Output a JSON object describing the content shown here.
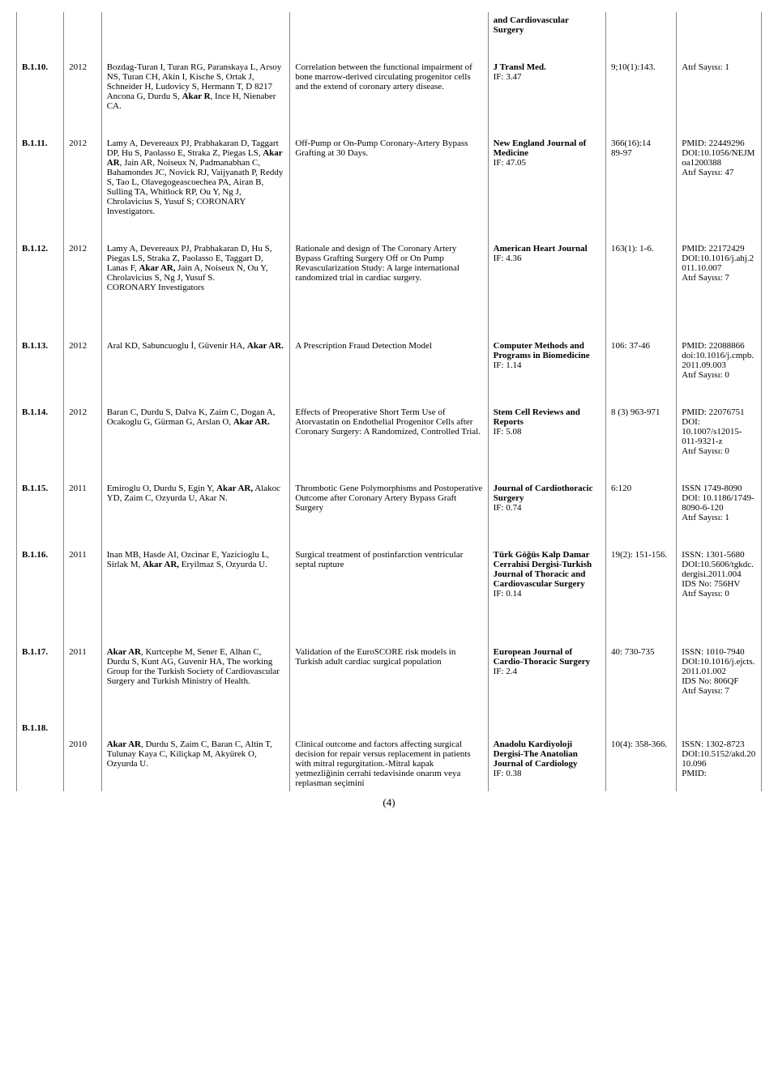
{
  "header_cell": "and Cardiovascular Surgery",
  "rows": [
    {
      "id": "B.1.10.",
      "year": "2012",
      "authors": "Bozdag-Turan I, Turan RG, Paranskaya L, Arsoy NS, Turan CH, Akin I, Kische S, Ortak J, Schneider H, Ludovicy S, Hermann T, D 8217 Ancona G, Durdu S, <b>Akar R</b>, Ince H, Nienaber CA.",
      "title": "Correlation between the functional impairment of bone marrow-derived circulating progenitor cells and the extend of coronary artery disease.",
      "journal": "<b>J Transl Med.</b><br>IF: 3.47",
      "vol": "9;10(1):143.",
      "ids": "Atıf Sayısı: 1"
    },
    {
      "id": "B.1.11.",
      "year": "2012",
      "authors": "Lamy A, Devereaux PJ, Prabhakaran D, Taggart DP, Hu S, Paolasso E, Straka Z, Piegas LS, <b>Akar AR</b>, Jain AR, Noiseux N, Padmanabhan C, Bahamondes JC, Novick RJ, Vaijyanath P, Reddy S, Tao L, Olavegogeascoechea PA, Airan B, Sulling TA, Whitlock RP, Ou Y, Ng J, Chrolavicius S, Yusuf S; CORONARY Investigators.",
      "title": "Off-Pump or On-Pump Coronary-Artery Bypass Grafting at 30 Days.",
      "journal": "<b>New England Journal of Medicine</b><br>IF: 47.05",
      "vol": "366(16):14<br>89-97",
      "ids": "PMID: 22449296<br>DOI:10.1056/NEJMoa1200388<br>Atıf Sayısı: 47"
    },
    {
      "id": "B.1.12.",
      "year": "2012",
      "authors": "Lamy A, Devereaux PJ, Prabhakaran D, Hu S, Piegas LS, Straka Z, Paolasso E, Taggart D, Lanas F, <b>Akar AR,</b> Jain A, Noiseux N, Ou Y, Chrolavicius S, Ng J, Yusuf S.<br>CORONARY Investigators",
      "title": "Rationale and design of The Coronary Artery Bypass Grafting Surgery Off or On Pump Revascularization Study: A large international randomized trial in cardiac surgery.",
      "journal": "<b>American Heart Journal</b><br>IF: 4.36",
      "vol": "163(1): 1-6.",
      "ids": "PMID: 22172429<br>DOI:10.1016/j.ahj.2011.10.007<br>Atıf Sayısı: 7"
    },
    {
      "id": "B.1.13.",
      "year": "2012",
      "authors": "Aral KD, Sabuncuoglu İ, Güvenir HA, <b>Akar AR.</b>",
      "title": "A Prescription Fraud Detection Model",
      "journal": "<b>Computer Methods and Programs in Biomedicine</b><br>IF: 1.14",
      "vol": "106: 37-46",
      "ids": "PMID: 22088866<br>doi:10.1016/j.cmpb.2011.09.003<br>Atıf Sayısı: 0"
    },
    {
      "id": "B.1.14.",
      "year": "2012",
      "authors": "Baran C, Durdu S, Dalva K, Zaim C, Dogan A, Ocakoglu G, Gürman G, Arslan O, <b>Akar AR.</b>",
      "title": "Effects of Preoperative Short Term Use of Atorvastatin on Endothelial Progenitor Cells after Coronary Surgery: A Randomized, Controlled Trial.",
      "journal": "<b>Stem Cell Reviews and Reports</b><br>IF: 5.08",
      "vol": "8 (3) 963-971",
      "ids": "PMID: 22076751<br>DOI: 10.1007/s12015-011-9321-z<br>Atıf Sayısı: 0"
    },
    {
      "id": "B.1.15.",
      "year": "2011",
      "authors": "Emiroglu O, Durdu S, Egin Y, <b>Akar AR,</b> Alakoc YD, Zaim C, Ozyurda U, Akar N.",
      "title": "Thrombotic Gene Polymorphisms and Postoperative Outcome after Coronary Artery Bypass Graft Surgery",
      "journal": "<b>Journal of Cardiothoracic Surgery</b><br>IF: 0.74",
      "vol": "6:120",
      "ids": "ISSN 1749-8090<br>DOI: 10.1186/1749-8090-6-120<br>Atıf Sayısı: 1"
    },
    {
      "id": "B.1.16.",
      "year": "2011",
      "authors": "Inan MB, Hasde AI, Ozcinar E, Yazicioglu L, Sirlak M, <b>Akar AR,</b> Eryilmaz S, Ozyurda U.",
      "title": "Surgical treatment of postinfarction ventricular septal rupture",
      "journal": "<b>Türk Göğüs Kalp Damar Cerrahisi Dergisi-Turkish Journal of Thoracic and Cardiovascular Surgery</b><br>IF: 0.14",
      "vol": "19(2): 151-156.",
      "ids": "ISSN: 1301-5680<br>DOI:10.5606/tgkdc.dergisi.2011.004<br>IDS No: 756HV<br>Atıf Sayısı: 0"
    },
    {
      "id": "B.1.17.",
      "year": "2011",
      "authors": "<b>Akar AR</b>, Kurtcephe M, Sener E, Alhan C, Durdu S, Kunt AG, Guvenir HA, The working Group for the Turkish Society of Cardiovascular Surgery and Turkish Ministry of Health.",
      "title": "Validation of the EuroSCORE risk models in Turkish adult cardiac surgical population",
      "journal": "<b>European Journal of Cardio-Thoracic Surgery</b><br>IF: 2.4",
      "vol": "40: 730-735",
      "ids": "ISSN: 1010-7940<br>DOI:10.1016/j.ejcts.2011.01.002<br>IDS No: 806QF<br>Atıf Sayısı: 7"
    },
    {
      "id": "B.1.18.",
      "year": "2010",
      "authors": "<b>Akar AR</b>, Durdu S, Zaim C, Baran C, Altin T, Tulunay Kaya C, Kiliçkap M, Akyürek O, Ozyurda U.",
      "title": "Clinical outcome and factors affecting surgical decision for repair versus replacement in patients with mitral regurgitation.-Mitral kapak yetmezliğinin cerrahi tedavisinde onarım veya replasman seçimini",
      "journal": "<b>Anadolu Kardiyoloji Dergisi-The Anatolian Journal of Cardiology</b><br>IF: 0.38",
      "vol": "10(4): 358-366.",
      "ids": "ISSN: 1302-8723<br>DOI:10.5152/akd.2010.096<br>PMID:",
      "id_separate": true
    }
  ],
  "page_number": "(4)"
}
